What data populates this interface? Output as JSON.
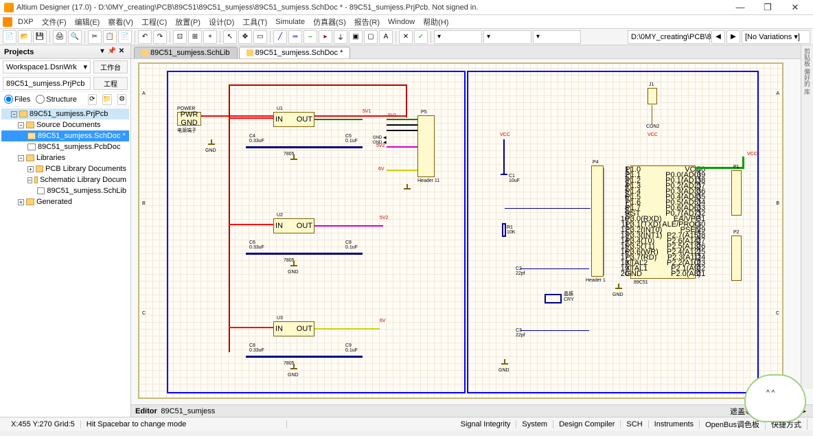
{
  "window": {
    "title": "Altium Designer (17.0) - D:\\0MY_creating\\PCB\\89C51\\89C51_sumjess\\89C51_sumjess.SchDoc * - 89C51_sumjess.PrjPcb. Not signed in."
  },
  "menu": {
    "dxp": "DXP",
    "items": [
      "文件(F)",
      "编辑(E)",
      "察看(V)",
      "工程(C)",
      "放置(P)",
      "设计(D)",
      "工具(T)",
      "Simulate",
      "仿真器(S)",
      "报告(R)",
      "Window",
      "帮助(H)"
    ]
  },
  "toolbar": {
    "path_combo": "D:\\0MY_creating\\PCB\\89",
    "variations": "[No Variations ▾]"
  },
  "projects": {
    "title": "Projects",
    "workspace": "Workspace1.DsnWrk",
    "workspace_btn": "工作台",
    "project": "89C51_sumjess.PrjPcb",
    "project_btn": "工程",
    "files_opt": "Files",
    "structure_opt": "Structure",
    "tree": {
      "root": "89C51_sumjess.PrjPcb",
      "src": "Source Documents",
      "sch": "89C51_sumjess.SchDoc *",
      "pcb": "89C51_sumjess.PcbDoc",
      "libs": "Libraries",
      "pcblib": "PCB Library Documents",
      "schlib": "Schematic Library Docum",
      "schlibdoc": "89C51_sumjess.SchLib",
      "gen": "Generated"
    }
  },
  "tabs": {
    "lib": "89C51_sumjess.SchLib",
    "sch": "89C51_sumjess.SchDoc *"
  },
  "schematic": {
    "power_block": {
      "label": "POWER",
      "pwr": "PWR",
      "gnd": "GND",
      "note": "电源端子"
    },
    "regulators": [
      {
        "ref": "U1",
        "in": "IN",
        "out": "OUT",
        "part": "7805",
        "c_in": "C4\n0.33uF",
        "c_out": "C5\n0.1uF",
        "net": "5V1"
      },
      {
        "ref": "U2",
        "in": "IN",
        "out": "OUT",
        "part": "7805",
        "c_in": "C6\n0.33uF",
        "c_out": "C8\n0.1uF",
        "net": "5V2"
      },
      {
        "ref": "U3",
        "in": "IN",
        "out": "OUT",
        "part": "7805",
        "c_in": "C8\n0.33uF",
        "c_out": "C9\n0.1uF",
        "net": "6V"
      }
    ],
    "header": {
      "ref": "P5",
      "name": "Header 11",
      "pins": 11,
      "nets": [
        "5V1",
        "GND",
        "GND",
        "5V2",
        "",
        "",
        "",
        "",
        "",
        "6V",
        ""
      ]
    },
    "mcu": {
      "ref": "89C51",
      "header_ref": "P4",
      "header_name": "Header 1",
      "left_pins": [
        "P1.0",
        "P1.1",
        "P1.2",
        "P1.3",
        "P1.4",
        "P1.5",
        "P1.6",
        "P1.7",
        "RST",
        "P3.0(RXD)",
        "P3.1(TXD)",
        "P3.2(INT0)",
        "P3.3(INT1)",
        "P3.4(T0)",
        "P3.5(T1)",
        "P3.6(WR)",
        "P3.7(RD)",
        "XTAL2",
        "XTAL1",
        "GND"
      ],
      "right_pins": [
        "VCC",
        "P0.0(AD0)",
        "P0.1(AD1)",
        "P0.2(AD2)",
        "P0.3(AD3)",
        "P0.4(AD4)",
        "P0.5(AD5)",
        "P0.6(AD6)",
        "P0.7(AD7)",
        "EA/VPP",
        "ALE/PROG",
        "PSEN",
        "P2.7(A15)",
        "P2.6(A14)",
        "P2.5(A13)",
        "P2.4(A12)",
        "P2.3(A11)",
        "P2.2(A10)",
        "P2.1(A9)",
        "P2.0(A8)"
      ]
    },
    "caps": {
      "c1": "C1\n10uF",
      "c2": "C2\n22pf",
      "c3": "C3\n22pf"
    },
    "r1": "R1\n10K",
    "cry": "晶振\nCRY",
    "conn": {
      "ref": "J1",
      "name": "CON2",
      "net": "VCC"
    },
    "p1": "P1",
    "p2": "P2",
    "vcc": "VCC",
    "gnd_lbl": "GND",
    "zones": [
      "A",
      "B",
      "C"
    ]
  },
  "editor_footer": {
    "label": "Editor",
    "name": "89C51_sumjess"
  },
  "status": {
    "coords": "X:455 Y:270  Grid:5",
    "hint": "Hit Spacebar to change mode",
    "right": [
      "Signal Integrity",
      "System",
      "Design Compiler",
      "SCH",
      "Instruments",
      "OpenBus调色板",
      "快捷方式"
    ],
    "btns": [
      "遮盖等级",
      "清除"
    ]
  }
}
